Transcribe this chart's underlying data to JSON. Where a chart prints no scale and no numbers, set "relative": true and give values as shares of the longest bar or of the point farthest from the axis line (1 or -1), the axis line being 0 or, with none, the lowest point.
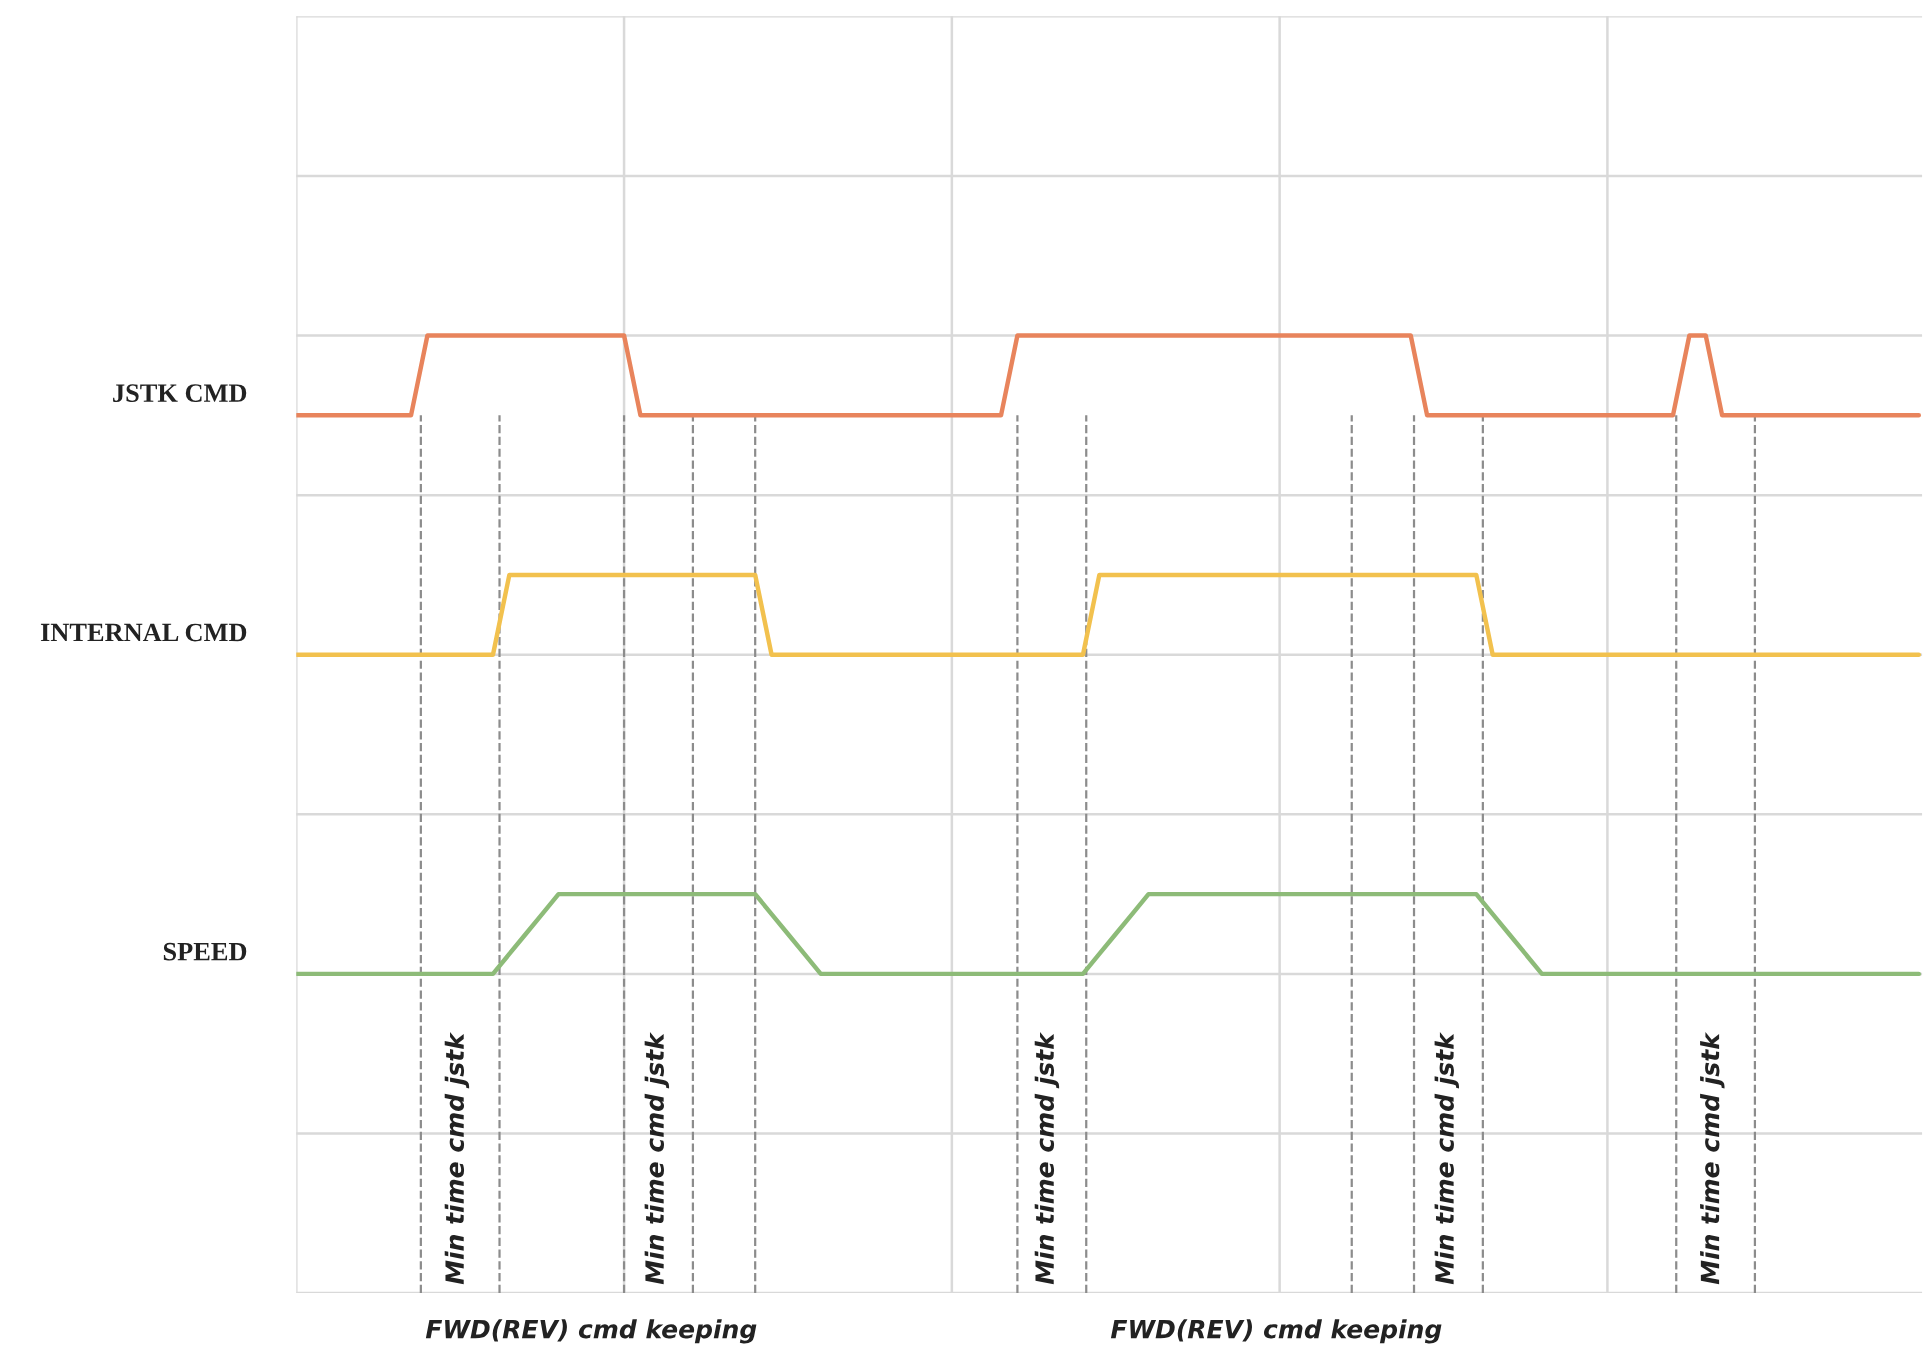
{
  "chart_data": {
    "type": "line",
    "relative": true,
    "grid": true,
    "legend": false,
    "marker": "none",
    "line_style": "solid",
    "categories": [
      null,
      null,
      null,
      null,
      null,
      null,
      null,
      null,
      null,
      null,
      null,
      null,
      null,
      null,
      null,
      null,
      null,
      null,
      null,
      null,
      null,
      null,
      null,
      null,
      null,
      null,
      null,
      null,
      null,
      null,
      null,
      null,
      null,
      null,
      null,
      null,
      null,
      null,
      null,
      null,
      null,
      null,
      null,
      null,
      null,
      null,
      null,
      null,
      null,
      null,
      null,
      null,
      null,
      null,
      null,
      null,
      null,
      null,
      null,
      null,
      null,
      null,
      null,
      null,
      null,
      null,
      null,
      null,
      null,
      null,
      null,
      null,
      null,
      null,
      null,
      null,
      null,
      null,
      null,
      null,
      null,
      null,
      null,
      null,
      null,
      null,
      null,
      null,
      null,
      null,
      null,
      null,
      null,
      null,
      null,
      null,
      null,
      null,
      null,
      null
    ],
    "series": [
      {
        "name": "JSTK CMD",
        "color": "#e8845c",
        "values": [
          0.875,
          0.875,
          0.875,
          0.875,
          0.875,
          0.875,
          0.875,
          0.875,
          1,
          1,
          1,
          1,
          1,
          1,
          1,
          1,
          1,
          1,
          1,
          1,
          1,
          0.875,
          0.875,
          0.875,
          0.875,
          0.875,
          0.875,
          0.875,
          0.875,
          0.875,
          0.875,
          0.875,
          0.875,
          0.875,
          0.875,
          0.875,
          0.875,
          0.875,
          0.875,
          0.875,
          0.875,
          0.875,
          0.875,
          0.875,
          1,
          1,
          1,
          1,
          1,
          1,
          1,
          1,
          1,
          1,
          1,
          1,
          1,
          1,
          1,
          1,
          1,
          1,
          1,
          1,
          1,
          1,
          1,
          1,
          1,
          0.875,
          0.875,
          0.875,
          0.875,
          0.875,
          0.875,
          0.875,
          0.875,
          0.875,
          0.875,
          0.875,
          0.875,
          0.875,
          0.875,
          0.875,
          0.875,
          1,
          1,
          0.875,
          0.875,
          0.875,
          0.875,
          0.875,
          0.875,
          0.875,
          0.875,
          0.875,
          0.875,
          0.875,
          0.875,
          0.875
        ]
      },
      {
        "name": "INTERNAL CMD",
        "color": "#f2c14e",
        "values": [
          0.5,
          0.5,
          0.5,
          0.5,
          0.5,
          0.5,
          0.5,
          0.5,
          0.5,
          0.5,
          0.5,
          0.5,
          0.5,
          0.625,
          0.625,
          0.625,
          0.625,
          0.625,
          0.625,
          0.625,
          0.625,
          0.625,
          0.625,
          0.625,
          0.625,
          0.625,
          0.625,
          0.625,
          0.625,
          0.5,
          0.5,
          0.5,
          0.5,
          0.5,
          0.5,
          0.5,
          0.5,
          0.5,
          0.5,
          0.5,
          0.5,
          0.5,
          0.5,
          0.5,
          0.5,
          0.5,
          0.5,
          0.5,
          0.5,
          0.625,
          0.625,
          0.625,
          0.625,
          0.625,
          0.625,
          0.625,
          0.625,
          0.625,
          0.625,
          0.625,
          0.625,
          0.625,
          0.625,
          0.625,
          0.625,
          0.625,
          0.625,
          0.625,
          0.625,
          0.625,
          0.625,
          0.625,
          0.625,
          0.5,
          0.5,
          0.5,
          0.5,
          0.5,
          0.5,
          0.5,
          0.5,
          0.5,
          0.5,
          0.5,
          0.5,
          0.5,
          0.5,
          0.5,
          0.5,
          0.5,
          0.5,
          0.5,
          0.5,
          0.5,
          0.5,
          0.5,
          0.5,
          0.5,
          0.5,
          0.5
        ]
      },
      {
        "name": "SPEED",
        "color": "#8dbb78",
        "values": [
          0,
          0,
          0,
          0,
          0,
          0,
          0,
          0,
          0,
          0,
          0,
          0,
          0,
          0.03125,
          0.0625,
          0.09375,
          0.125,
          0.125,
          0.125,
          0.125,
          0.125,
          0.125,
          0.125,
          0.125,
          0.125,
          0.125,
          0.125,
          0.125,
          0.125,
          0.09375,
          0.0625,
          0.03125,
          0,
          0,
          0,
          0,
          0,
          0,
          0,
          0,
          0,
          0,
          0,
          0,
          0,
          0,
          0,
          0,
          0,
          0.03125,
          0.0625,
          0.09375,
          0.125,
          0.125,
          0.125,
          0.125,
          0.125,
          0.125,
          0.125,
          0.125,
          0.125,
          0.125,
          0.125,
          0.125,
          0.125,
          0.125,
          0.125,
          0.125,
          0.125,
          0.125,
          0.125,
          0.125,
          0.125,
          0.09375,
          0.0625,
          0.03125,
          0,
          0,
          0,
          0,
          0,
          0,
          0,
          0,
          0,
          0,
          0,
          0,
          0,
          0,
          0,
          0,
          0,
          0,
          0,
          0,
          0,
          0,
          0,
          0
        ]
      }
    ],
    "annotations": [
      "Min time cmd jstk",
      "Min time cmd jstk",
      "Min time cmd jstk",
      "Min time cmd jstk",
      "Min time cmd jstk",
      "FWD(REV) cmd keeping",
      "FWD(REV) cmd keeping"
    ]
  }
}
